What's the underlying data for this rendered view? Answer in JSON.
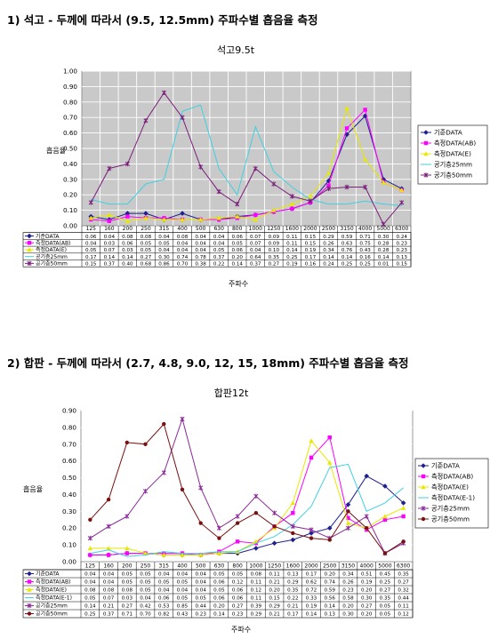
{
  "sections": [
    {
      "heading": "1) 석고 - 두께에 따라서 (9.5, 12.5mm) 주파수별 흡음율 측정"
    },
    {
      "heading": "2) 합판 - 두께에 따라서 (2.7, 4.8, 9.0, 12, 15, 18mm) 주파수별 흡음율 측정"
    }
  ],
  "chart_data": [
    {
      "type": "line",
      "title": "석고9.5t",
      "xlabel": "주파수",
      "ylabel": "흡음율",
      "ylim": [
        0,
        1.0
      ],
      "yticks": [
        "0.00",
        "0.10",
        "0.20",
        "0.30",
        "0.40",
        "0.50",
        "0.60",
        "0.70",
        "0.80",
        "0.90",
        "1.00"
      ],
      "categories": [
        "125",
        "160",
        "200",
        "250",
        "315",
        "400",
        "500",
        "630",
        "800",
        "1000",
        "1250",
        "1600",
        "2000",
        "2500",
        "3150",
        "4000",
        "5000",
        "6300"
      ],
      "legend_position": "right",
      "grid": true,
      "series": [
        {
          "name": "기준DATA",
          "color": "#1f1f8f",
          "marker": "diamond",
          "values": [
            0.06,
            0.04,
            0.08,
            0.08,
            0.04,
            0.08,
            0.04,
            0.04,
            0.06,
            0.07,
            0.09,
            0.11,
            0.15,
            0.29,
            0.59,
            0.71,
            0.3,
            0.24
          ]
        },
        {
          "name": "측정DATA(AB)",
          "color": "#ff00ff",
          "marker": "square",
          "values": [
            0.04,
            0.03,
            0.06,
            0.05,
            0.05,
            0.04,
            0.04,
            0.04,
            0.05,
            0.07,
            0.09,
            0.11,
            0.15,
            0.26,
            0.63,
            0.75,
            0.28,
            0.23
          ]
        },
        {
          "name": "측정DATA(E)",
          "color": "#e8e800",
          "marker": "triangle",
          "values": [
            0.05,
            0.07,
            0.03,
            0.05,
            0.04,
            0.04,
            0.04,
            0.05,
            0.06,
            0.04,
            0.1,
            0.14,
            0.19,
            0.34,
            0.76,
            0.43,
            0.28,
            0.23
          ]
        },
        {
          "name": "공기층25mm",
          "color": "#40d0e0",
          "marker": "none",
          "values": [
            0.17,
            0.14,
            0.14,
            0.27,
            0.3,
            0.74,
            0.78,
            0.37,
            0.2,
            0.64,
            0.35,
            0.25,
            0.17,
            0.14,
            0.14,
            0.16,
            0.14,
            0.13
          ]
        },
        {
          "name": "공기층50mm",
          "color": "#7a1f7a",
          "marker": "star",
          "values": [
            0.15,
            0.37,
            0.4,
            0.68,
            0.86,
            0.7,
            0.38,
            0.22,
            0.14,
            0.37,
            0.27,
            0.19,
            0.16,
            0.24,
            0.25,
            0.25,
            0.01,
            0.15
          ]
        }
      ]
    },
    {
      "type": "line",
      "title": "합판12t",
      "xlabel": "주파수",
      "ylabel": "흡음율",
      "ylim": [
        0,
        0.9
      ],
      "yticks": [
        "0.00",
        "0.10",
        "0.20",
        "0.30",
        "0.40",
        "0.50",
        "0.60",
        "0.70",
        "0.80",
        "0.90"
      ],
      "categories": [
        "125",
        "160",
        "200",
        "250",
        "315",
        "400",
        "500",
        "630",
        "800",
        "1000",
        "1250",
        "1600",
        "2000",
        "2500",
        "3150",
        "4000",
        "5000",
        "6300"
      ],
      "legend_position": "right",
      "grid": true,
      "series": [
        {
          "name": "기준DATA",
          "color": "#1f1f8f",
          "marker": "diamond",
          "values": [
            0.04,
            0.04,
            0.05,
            0.05,
            0.04,
            0.04,
            0.04,
            0.05,
            0.05,
            0.08,
            0.11,
            0.13,
            0.17,
            0.2,
            0.34,
            0.51,
            0.45,
            0.35
          ]
        },
        {
          "name": "측정DATA(AB)",
          "color": "#ff00ff",
          "marker": "square",
          "values": [
            0.04,
            0.04,
            0.05,
            0.05,
            0.05,
            0.05,
            0.04,
            0.06,
            0.12,
            0.11,
            0.21,
            0.29,
            0.62,
            0.74,
            0.26,
            0.19,
            0.25,
            0.27
          ]
        },
        {
          "name": "측정DATA(E)",
          "color": "#e8e800",
          "marker": "triangle",
          "values": [
            0.08,
            0.08,
            0.08,
            0.05,
            0.04,
            0.04,
            0.04,
            0.05,
            0.06,
            0.12,
            0.2,
            0.35,
            0.72,
            0.59,
            0.23,
            0.2,
            0.27,
            0.32
          ]
        },
        {
          "name": "측정DATA(E-1)",
          "color": "#40d0e0",
          "marker": "none",
          "values": [
            0.05,
            0.07,
            0.03,
            0.04,
            0.06,
            0.05,
            0.05,
            0.06,
            0.06,
            0.11,
            0.15,
            0.22,
            0.33,
            0.56,
            0.58,
            0.3,
            0.35,
            0.44
          ]
        },
        {
          "name": "공기층25mm",
          "color": "#8a2a9a",
          "marker": "star",
          "values": [
            0.14,
            0.21,
            0.27,
            0.42,
            0.53,
            0.85,
            0.44,
            0.2,
            0.27,
            0.39,
            0.29,
            0.21,
            0.19,
            0.14,
            0.2,
            0.27,
            0.05,
            0.11
          ]
        },
        {
          "name": "공기층50mm",
          "color": "#7a1010",
          "marker": "circle",
          "values": [
            0.25,
            0.37,
            0.71,
            0.7,
            0.82,
            0.43,
            0.23,
            0.14,
            0.23,
            0.29,
            0.21,
            0.17,
            0.14,
            0.13,
            0.3,
            0.2,
            0.05,
            0.12
          ]
        }
      ]
    }
  ]
}
